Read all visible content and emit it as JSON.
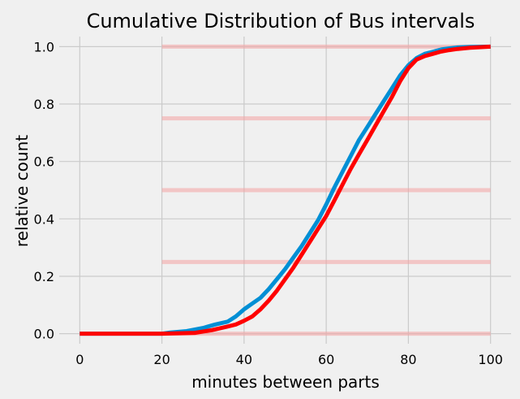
{
  "chart_data": {
    "type": "line",
    "title": "Cumulative Distribution of Bus intervals",
    "xlabel": "minutes between parts",
    "ylabel": "relative count",
    "xlim": [
      -5,
      105
    ],
    "ylim": [
      -0.035,
      1.035
    ],
    "grid": true,
    "x_ticks": [
      0,
      20,
      40,
      60,
      80,
      100
    ],
    "y_ticks": [
      0.0,
      0.2,
      0.4,
      0.6,
      0.8,
      1.0
    ],
    "x_tick_labels": [
      "0",
      "20",
      "40",
      "60",
      "80",
      "100"
    ],
    "y_tick_labels": [
      "0.0",
      "0.2",
      "0.4",
      "0.6",
      "0.8",
      "1.0"
    ],
    "reference_lines": {
      "y": [
        0.0,
        0.25,
        0.5,
        0.75,
        1.0
      ],
      "x_range": [
        20,
        100
      ],
      "color": "#f4a3a3"
    },
    "series": [
      {
        "color": "#008fd5",
        "x": [
          0,
          20,
          22,
          26,
          30,
          33,
          36,
          38,
          40,
          42,
          44,
          46,
          48,
          50,
          52,
          54,
          56,
          58,
          60,
          62,
          64,
          66,
          68,
          70,
          72,
          74,
          76,
          78,
          80,
          82,
          84,
          86,
          88,
          90,
          92,
          95,
          100
        ],
        "y": [
          0.0,
          0.0,
          0.004,
          0.009,
          0.02,
          0.032,
          0.042,
          0.06,
          0.085,
          0.105,
          0.125,
          0.155,
          0.19,
          0.225,
          0.265,
          0.305,
          0.35,
          0.395,
          0.45,
          0.51,
          0.565,
          0.62,
          0.675,
          0.72,
          0.765,
          0.81,
          0.855,
          0.9,
          0.935,
          0.96,
          0.975,
          0.982,
          0.99,
          0.994,
          0.997,
          0.999,
          1.0
        ]
      },
      {
        "color": "#ff0000",
        "x": [
          0,
          20,
          28,
          32,
          36,
          38,
          40,
          42,
          44,
          46,
          48,
          50,
          52,
          54,
          56,
          58,
          60,
          62,
          64,
          66,
          68,
          70,
          72,
          74,
          76,
          78,
          80,
          82,
          84,
          86,
          88,
          90,
          92,
          95,
          100
        ],
        "y": [
          0.0,
          0.0,
          0.003,
          0.012,
          0.025,
          0.032,
          0.045,
          0.06,
          0.085,
          0.115,
          0.15,
          0.19,
          0.23,
          0.275,
          0.32,
          0.365,
          0.41,
          0.465,
          0.52,
          0.575,
          0.625,
          0.675,
          0.725,
          0.775,
          0.825,
          0.88,
          0.925,
          0.955,
          0.967,
          0.975,
          0.983,
          0.988,
          0.992,
          0.996,
          1.0
        ]
      }
    ]
  }
}
